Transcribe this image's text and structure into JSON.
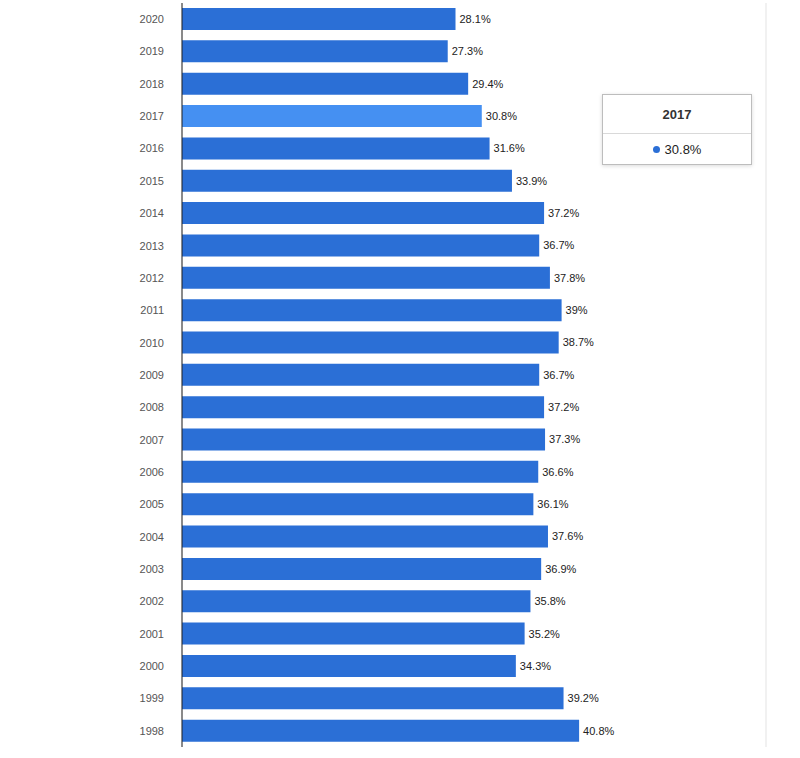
{
  "chart_data": {
    "type": "bar",
    "orientation": "horizontal",
    "categories": [
      "2020",
      "2019",
      "2018",
      "2017",
      "2016",
      "2015",
      "2014",
      "2013",
      "2012",
      "2011",
      "2010",
      "2009",
      "2008",
      "2007",
      "2006",
      "2005",
      "2004",
      "2003",
      "2002",
      "2001",
      "2000",
      "1999",
      "1998"
    ],
    "values": [
      28.1,
      27.3,
      29.4,
      30.8,
      31.6,
      33.9,
      37.2,
      36.7,
      37.8,
      39,
      38.7,
      36.7,
      37.2,
      37.3,
      36.6,
      36.1,
      37.6,
      36.9,
      35.8,
      35.2,
      34.3,
      39.2,
      40.8
    ],
    "value_labels": [
      "28.1%",
      "27.3%",
      "29.4%",
      "30.8%",
      "31.6%",
      "33.9%",
      "37.2%",
      "36.7%",
      "37.8%",
      "39%",
      "38.7%",
      "36.7%",
      "37.2%",
      "37.3%",
      "36.6%",
      "36.1%",
      "37.6%",
      "36.9%",
      "35.8%",
      "35.2%",
      "34.3%",
      "39.2%",
      "40.8%"
    ],
    "colors": [
      "#2b6fd6",
      "#2b6fd6",
      "#2b6fd6",
      "#4590f2",
      "#2b6fd6",
      "#2b6fd6",
      "#2b6fd6",
      "#2b6fd6",
      "#2b6fd6",
      "#2b6fd6",
      "#2b6fd6",
      "#2b6fd6",
      "#2b6fd6",
      "#2b6fd6",
      "#2b6fd6",
      "#2b6fd6",
      "#2b6fd6",
      "#2b6fd6",
      "#2b6fd6",
      "#2b6fd6",
      "#2b6fd6",
      "#2b6fd6",
      "#2b6fd6"
    ],
    "xlim": [
      0,
      60
    ],
    "xticks": [
      0,
      5,
      10,
      15,
      20,
      25,
      30,
      35,
      40,
      45,
      50,
      55,
      60
    ],
    "grid": true,
    "data_labels": true,
    "tick_labels": "y",
    "annotations": [
      {
        "category": "2017",
        "label": "30.8%"
      }
    ]
  }
}
